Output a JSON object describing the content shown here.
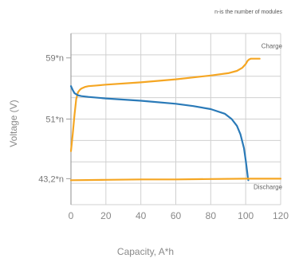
{
  "note": "n-is the number of modules",
  "chart_data": {
    "type": "line",
    "xlabel": "Capacity, A*h",
    "ylabel": "Voltage (V)",
    "xlim": [
      0,
      120
    ],
    "ylim": [
      39.8,
      62.2
    ],
    "grid": true,
    "x_ticks": [
      0,
      20,
      40,
      60,
      80,
      100,
      120
    ],
    "y_ticks": [
      {
        "value": 59,
        "label": "59*n"
      },
      {
        "value": 51,
        "label": "51*n"
      },
      {
        "value": 43.2,
        "label": "43,2*n"
      }
    ],
    "colors": {
      "charge": "#f5a623",
      "discharge_curve": "#2a7ab8",
      "grid": "#d0d0d0",
      "axis": "#a0a0a0"
    },
    "series": [
      {
        "name": "Charge",
        "color": "#f5a623",
        "x": [
          0,
          1,
          2,
          3,
          4,
          5,
          6,
          8,
          10,
          15,
          20,
          40,
          60,
          80,
          90,
          95,
          98,
          100,
          101,
          102,
          103,
          106,
          108
        ],
        "y": [
          46.8,
          49.0,
          51.5,
          53.6,
          54.5,
          54.8,
          55.0,
          55.2,
          55.3,
          55.4,
          55.5,
          55.8,
          56.2,
          56.7,
          57.0,
          57.3,
          57.7,
          58.2,
          58.6,
          58.8,
          58.9,
          58.9,
          58.9
        ]
      },
      {
        "name": "",
        "color": "#2a7ab8",
        "x": [
          0,
          1,
          2,
          4,
          6,
          10,
          20,
          40,
          60,
          70,
          80,
          88,
          92,
          95,
          97,
          99,
          100,
          100.8,
          101.2,
          101.5
        ],
        "y": [
          55.3,
          54.8,
          54.4,
          54.1,
          54.0,
          53.9,
          53.7,
          53.4,
          53.0,
          52.7,
          52.3,
          51.7,
          51.0,
          50.1,
          49.0,
          47.2,
          45.6,
          44.2,
          43.4,
          43.0
        ]
      },
      {
        "name": "Discharge",
        "color": "#f5a623",
        "x": [
          0,
          20,
          40,
          60,
          80,
          100,
          120
        ],
        "y": [
          43.0,
          43.05,
          43.1,
          43.1,
          43.15,
          43.2,
          43.2
        ]
      }
    ]
  }
}
